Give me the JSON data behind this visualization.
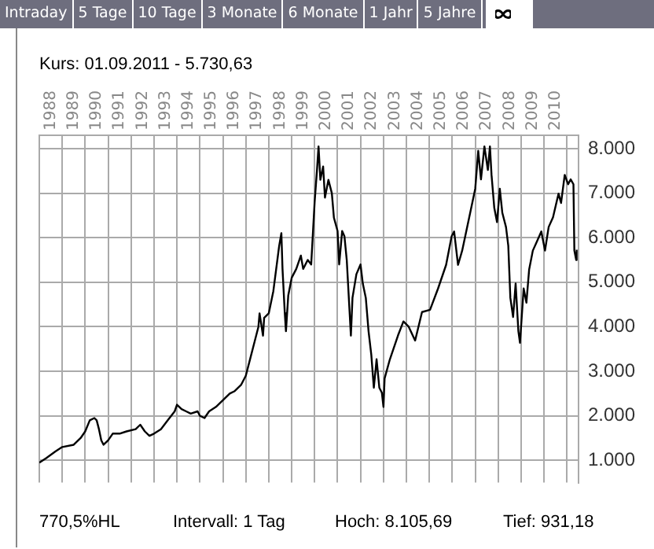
{
  "chart_data": {
    "type": "line",
    "title": "Kurs: 01.09.2011 - 5.730,63",
    "annotations": [
      "Intraday",
      "5 Tage",
      "10 Tage",
      "3 Monate",
      "6 Monate",
      "1 Jahr",
      "5 Jahre",
      "770,5%HL",
      "Intervall: 1 Tag",
      "Hoch: 8.105,69",
      "Tief: 931,18"
    ],
    "x": [
      1988.0,
      1988.3,
      1988.7,
      1989.0,
      1989.5,
      1989.8,
      1990.0,
      1990.2,
      1990.4,
      1990.5,
      1990.6,
      1990.7,
      1990.8,
      1991.0,
      1991.2,
      1991.5,
      1991.8,
      1992.2,
      1992.4,
      1992.6,
      1992.8,
      1993.0,
      1993.3,
      1993.6,
      1993.9,
      1994.0,
      1994.2,
      1994.4,
      1994.6,
      1994.9,
      1995.0,
      1995.2,
      1995.4,
      1995.7,
      1996.0,
      1996.3,
      1996.5,
      1996.8,
      1997.0,
      1997.2,
      1997.4,
      1997.55,
      1997.6,
      1997.75,
      1997.8,
      1998.0,
      1998.2,
      1998.45,
      1998.55,
      1998.6,
      1998.7,
      1998.75,
      1998.85,
      1999.0,
      1999.2,
      1999.4,
      1999.5,
      1999.7,
      1999.85,
      2000.0,
      2000.1,
      2000.17,
      2000.25,
      2000.37,
      2000.45,
      2000.6,
      2000.75,
      2000.84,
      2001.0,
      2001.07,
      2001.2,
      2001.3,
      2001.4,
      2001.58,
      2001.65,
      2001.82,
      2002.0,
      2002.1,
      2002.23,
      2002.35,
      2002.47,
      2002.58,
      2002.7,
      2002.82,
      2002.93,
      2003.0,
      2003.05,
      2003.28,
      2003.63,
      2003.87,
      2004.1,
      2004.38,
      2004.68,
      2005.03,
      2005.38,
      2005.73,
      2005.97,
      2006.08,
      2006.25,
      2006.43,
      2006.78,
      2007.0,
      2007.13,
      2007.25,
      2007.4,
      2007.55,
      2007.64,
      2007.71,
      2007.83,
      2007.95,
      2008.07,
      2008.18,
      2008.34,
      2008.44,
      2008.53,
      2008.65,
      2008.76,
      2008.88,
      2008.95,
      2009.11,
      2009.23,
      2009.35,
      2009.51,
      2009.7,
      2009.88,
      2010.04,
      2010.2,
      2010.39,
      2010.63,
      2010.74,
      2010.9,
      2011.05,
      2011.16,
      2011.28,
      2011.32,
      2011.4,
      2011.42
    ],
    "values": [
      950,
      1050,
      1200,
      1300,
      1350,
      1500,
      1650,
      1900,
      1950,
      1900,
      1700,
      1450,
      1350,
      1450,
      1600,
      1600,
      1650,
      1700,
      1800,
      1650,
      1550,
      1600,
      1700,
      1900,
      2100,
      2250,
      2150,
      2100,
      2050,
      2100,
      2000,
      1950,
      2100,
      2200,
      2350,
      2500,
      2550,
      2700,
      2900,
      3300,
      3700,
      4000,
      4300,
      3800,
      4200,
      4300,
      4800,
      5800,
      6100,
      5300,
      4300,
      3900,
      4700,
      5100,
      5300,
      5600,
      5300,
      5500,
      5400,
      6800,
      7500,
      8050,
      7300,
      7600,
      6900,
      7300,
      7000,
      6450,
      6150,
      5400,
      6150,
      6030,
      5500,
      3800,
      4650,
      5180,
      5400,
      4970,
      4650,
      3900,
      3370,
      2630,
      3270,
      2630,
      2520,
      2200,
      2840,
      3270,
      3800,
      4120,
      4000,
      3690,
      4330,
      4380,
      4860,
      5390,
      6030,
      6140,
      5390,
      5710,
      6560,
      7100,
      7950,
      7310,
      8050,
      7520,
      8050,
      7410,
      6670,
      6350,
      7100,
      6560,
      6240,
      5820,
      4650,
      4220,
      4970,
      3900,
      3640,
      4860,
      4540,
      5290,
      5710,
      5930,
      6140,
      5710,
      6240,
      6460,
      6990,
      6780,
      7410,
      7200,
      7310,
      7200,
      5710,
      5500,
      5730
    ],
    "color": "#000000",
    "xlim": [
      1988,
      2011.5
    ],
    "ylim": [
      500,
      8300
    ],
    "xticks": [
      {
        "value": 1988,
        "label": null
      },
      {
        "value": 1988.5,
        "label": "1988"
      },
      {
        "value": 1989,
        "label": null
      },
      {
        "value": 1989.5,
        "label": "1989"
      },
      {
        "value": 1990,
        "label": null
      },
      {
        "value": 1990.5,
        "label": "1990"
      },
      {
        "value": 1991,
        "label": null
      },
      {
        "value": 1991.5,
        "label": "1991"
      },
      {
        "value": 1992,
        "label": null
      },
      {
        "value": 1992.5,
        "label": "1992"
      },
      {
        "value": 1993,
        "label": null
      },
      {
        "value": 1993.5,
        "label": "1993"
      },
      {
        "value": 1994,
        "label": null
      },
      {
        "value": 1994.5,
        "label": "1994"
      },
      {
        "value": 1995,
        "label": null
      },
      {
        "value": 1995.5,
        "label": "1995"
      },
      {
        "value": 1996,
        "label": null
      },
      {
        "value": 1996.5,
        "label": "1996"
      },
      {
        "value": 1997,
        "label": null
      },
      {
        "value": 1997.5,
        "label": "1997"
      },
      {
        "value": 1998,
        "label": null
      },
      {
        "value": 1998.5,
        "label": "1998"
      },
      {
        "value": 1999,
        "label": null
      },
      {
        "value": 1999.5,
        "label": "1999"
      },
      {
        "value": 2000,
        "label": null
      },
      {
        "value": 2000.5,
        "label": "2000"
      },
      {
        "value": 2001,
        "label": null
      },
      {
        "value": 2001.5,
        "label": "2001"
      },
      {
        "value": 2002,
        "label": null
      },
      {
        "value": 2002.5,
        "label": "2002"
      },
      {
        "value": 2003,
        "label": null
      },
      {
        "value": 2003.5,
        "label": "2003"
      },
      {
        "value": 2004,
        "label": null
      },
      {
        "value": 2004.5,
        "label": "2004"
      },
      {
        "value": 2005,
        "label": null
      },
      {
        "value": 2005.5,
        "label": "2005"
      },
      {
        "value": 2006,
        "label": null
      },
      {
        "value": 2006.5,
        "label": "2006"
      },
      {
        "value": 2007,
        "label": null
      },
      {
        "value": 2007.5,
        "label": "2007"
      },
      {
        "value": 2008,
        "label": null
      },
      {
        "value": 2008.5,
        "label": "2008"
      },
      {
        "value": 2009,
        "label": null
      },
      {
        "value": 2009.5,
        "label": "2009"
      },
      {
        "value": 2010,
        "label": null
      },
      {
        "value": 2010.5,
        "label": "2010"
      },
      {
        "value": 2011,
        "label": null
      }
    ],
    "yticks": [
      {
        "value": 1000,
        "label": "1.000"
      },
      {
        "value": 2000,
        "label": "2.000"
      },
      {
        "value": 3000,
        "label": "3.000"
      },
      {
        "value": 4000,
        "label": "4.000"
      },
      {
        "value": 5000,
        "label": "5.000"
      },
      {
        "value": 6000,
        "label": "6.000"
      },
      {
        "value": 7000,
        "label": "7.000"
      },
      {
        "value": 8000,
        "label": "8.000"
      }
    ],
    "grid": true,
    "legend": false,
    "marker": "none",
    "line_style": "solid"
  }
}
